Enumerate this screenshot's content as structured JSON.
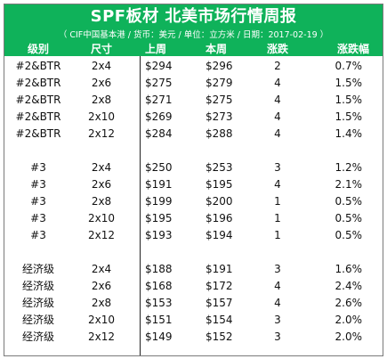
{
  "title": "SPF板材 北美市场行情周报",
  "subtitle": "（ CIF中国基本港 / 货币：美元 / 单位：立方米 / 日期：2017-02-19 ）",
  "columns": [
    "级别",
    "尺寸",
    "上周",
    "本周",
    "涨跌",
    "涨跌幅"
  ],
  "groups": [
    {
      "rows": [
        [
          "#2&BTR",
          "2x4",
          "$294",
          "$296",
          "2",
          "0.7%"
        ],
        [
          "#2&BTR",
          "2x6",
          "$275",
          "$279",
          "4",
          "1.5%"
        ],
        [
          "#2&BTR",
          "2x8",
          "$271",
          "$275",
          "4",
          "1.5%"
        ],
        [
          "#2&BTR",
          "2x10",
          "$269",
          "$273",
          "4",
          "1.5%"
        ],
        [
          "#2&BTR",
          "2x12",
          "$284",
          "$288",
          "4",
          "1.4%"
        ]
      ]
    },
    {
      "rows": [
        [
          "#3",
          "2x4",
          "$250",
          "$253",
          "3",
          "1.2%"
        ],
        [
          "#3",
          "2x6",
          "$191",
          "$195",
          "4",
          "2.1%"
        ],
        [
          "#3",
          "2x8",
          "$199",
          "$200",
          "1",
          "0.5%"
        ],
        [
          "#3",
          "2x10",
          "$195",
          "$196",
          "1",
          "0.5%"
        ],
        [
          "#3",
          "2x12",
          "$193",
          "$194",
          "1",
          "0.5%"
        ]
      ]
    },
    {
      "rows": [
        [
          "经济级",
          "2x4",
          "$188",
          "$191",
          "3",
          "1.6%"
        ],
        [
          "经济级",
          "2x6",
          "$168",
          "$172",
          "4",
          "2.4%"
        ],
        [
          "经济级",
          "2x8",
          "$153",
          "$157",
          "4",
          "2.6%"
        ],
        [
          "经济级",
          "2x10",
          "$151",
          "$154",
          "3",
          "2.0%"
        ],
        [
          "经济级",
          "2x12",
          "$149",
          "$152",
          "3",
          "2.0%"
        ]
      ]
    }
  ],
  "colors": {
    "header_green": "#0fb25a",
    "header_text": "#ffffff"
  }
}
